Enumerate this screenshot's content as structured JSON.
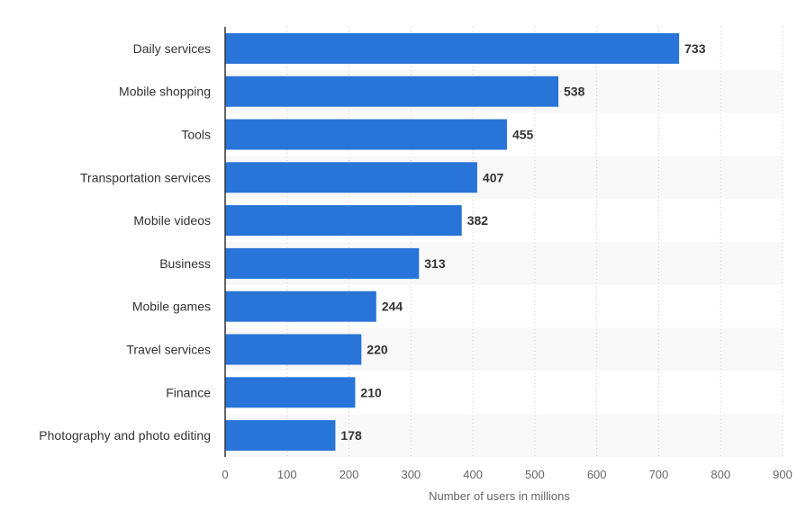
{
  "chart_data": {
    "type": "bar",
    "orientation": "horizontal",
    "categories": [
      "Daily services",
      "Mobile shopping",
      "Tools",
      "Transportation services",
      "Mobile videos",
      "Business",
      "Mobile games",
      "Travel services",
      "Finance",
      "Photography and photo editing"
    ],
    "values": [
      733,
      538,
      455,
      407,
      382,
      313,
      244,
      220,
      210,
      178
    ],
    "xlabel": "Number of users in millions",
    "ylabel": "",
    "xlim": [
      0,
      900
    ],
    "xticks": [
      "0",
      "100",
      "200",
      "300",
      "400",
      "500",
      "600",
      "700",
      "800",
      "900"
    ],
    "grid": "vertical dotted",
    "bar_color": "#2874d8",
    "alt_row_color": "#f8f8f8"
  }
}
